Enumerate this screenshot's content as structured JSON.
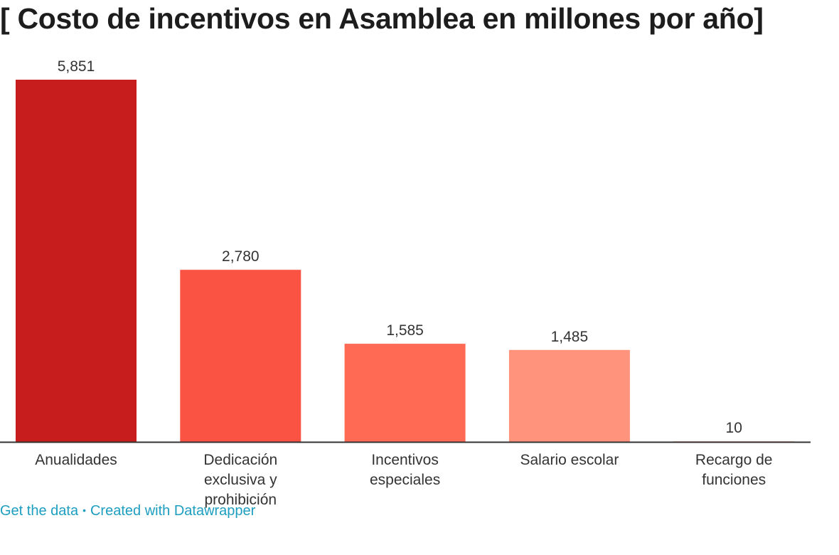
{
  "title": "[ Costo de incentivos en Asamblea en millones por año]",
  "chart_data": {
    "type": "bar",
    "title": "[ Costo de incentivos en Asamblea en millones por año]",
    "xlabel": "",
    "ylabel": "",
    "ylim": [
      0,
      5851
    ],
    "grid": false,
    "categories": [
      [
        "Anualidades"
      ],
      [
        "Dedicación",
        "exclusiva y",
        "prohibición"
      ],
      [
        "Incentivos",
        "especiales"
      ],
      [
        "Salario escolar"
      ],
      [
        "Recargo de",
        "funciones"
      ]
    ],
    "values": [
      5851,
      2780,
      1585,
      1485,
      10
    ],
    "value_labels": [
      "5,851",
      "2,780",
      "1,585",
      "1,485",
      "10"
    ],
    "colors": [
      "#c71e1d",
      "#fa5343",
      "#ff6a55",
      "#ff937c",
      "#ffbba5"
    ]
  },
  "footer": {
    "get_data": "Get the data",
    "separator": "•",
    "created_with": "Created with Datawrapper"
  }
}
